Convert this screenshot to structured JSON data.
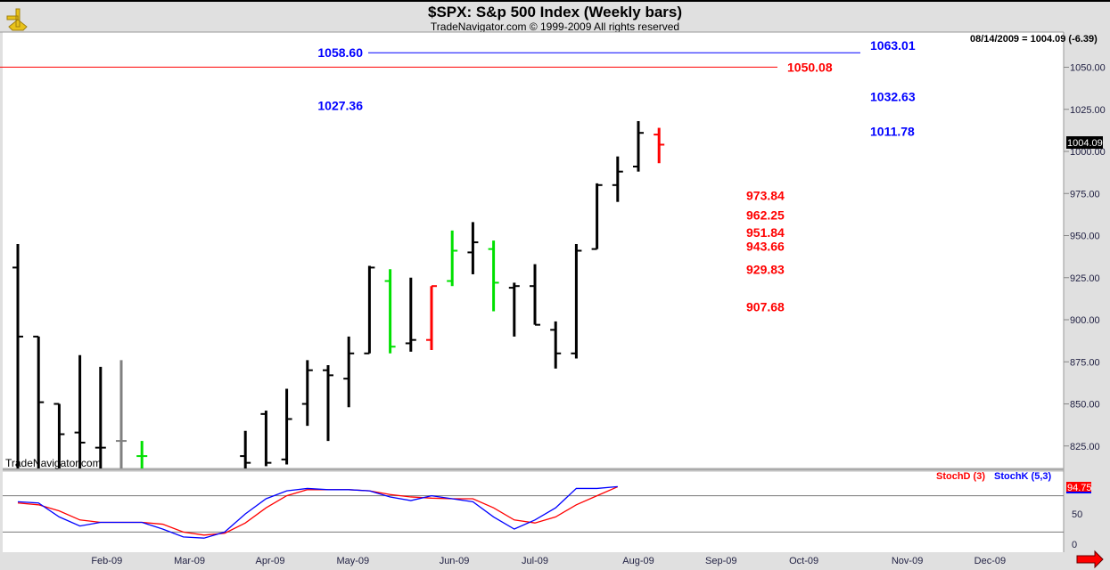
{
  "header": {
    "title": "$SPX:  S&p 500 Index  (Weekly bars)",
    "subtitle": "TradeNavigator.com © 1999-2009 All rights reserved",
    "quote": "08/14/2009 = 1004.09 (-6.39)",
    "watermark": "TradeNavigator.com"
  },
  "colors": {
    "up": "#000000",
    "green": "#00e000",
    "red": "#ff0000",
    "blue": "#0000ff",
    "gray": "#808080"
  },
  "chart_data": [
    {
      "type": "bar",
      "title": "$SPX: S&p 500 Index (Weekly bars)",
      "ylim": [
        808,
        1070
      ],
      "yticks": [
        "825.00",
        "850.00",
        "875.00",
        "900.00",
        "925.00",
        "950.00",
        "975.00",
        "1000.00",
        "1025.00",
        "1050.00"
      ],
      "ytick_values": [
        825,
        850,
        875,
        900,
        925,
        950,
        975,
        1000,
        1025,
        1050
      ],
      "last_price_label": "1004.09",
      "xticks": [
        "Feb-09",
        "Mar-09",
        "Apr-09",
        "May-09",
        "Jun-09",
        "Jul-09",
        "Aug-09",
        "Sep-09",
        "Oct-09",
        "Nov-09",
        "Dec-09"
      ],
      "xtick_weeks": [
        4.3,
        8.3,
        12.2,
        16.2,
        21.1,
        25,
        30,
        34,
        38,
        43,
        47
      ],
      "bars": [
        {
          "w": 0,
          "o": 931,
          "h": 945,
          "l": 800,
          "c": 890,
          "col": "up"
        },
        {
          "w": 1,
          "o": 890,
          "h": 890,
          "l": 800,
          "c": 851,
          "col": "up"
        },
        {
          "w": 2,
          "o": 850,
          "h": 850,
          "l": 800,
          "c": 832,
          "col": "up"
        },
        {
          "w": 3,
          "o": 833,
          "h": 879,
          "l": 800,
          "c": 827,
          "col": "up"
        },
        {
          "w": 4,
          "o": 824,
          "h": 872,
          "l": 800,
          "c": 824,
          "col": "up"
        },
        {
          "w": 5,
          "o": 828,
          "h": 876,
          "l": 800,
          "c": 828,
          "col": "gray"
        },
        {
          "w": 6,
          "o": 819,
          "h": 828,
          "l": 800,
          "c": 819,
          "col": "green"
        },
        {
          "w": 11,
          "o": 819,
          "h": 834,
          "l": 800,
          "c": 815,
          "col": "up"
        },
        {
          "w": 12,
          "o": 844,
          "h": 846,
          "l": 813,
          "c": 815,
          "col": "up"
        },
        {
          "w": 13,
          "o": 817,
          "h": 859,
          "l": 814,
          "c": 841,
          "col": "up"
        },
        {
          "w": 14,
          "o": 850,
          "h": 876,
          "l": 837,
          "c": 870,
          "col": "up"
        },
        {
          "w": 15,
          "o": 870,
          "h": 873,
          "l": 828,
          "c": 867,
          "col": "up"
        },
        {
          "w": 16,
          "o": 865,
          "h": 890,
          "l": 848,
          "c": 880,
          "col": "up"
        },
        {
          "w": 17,
          "o": 880,
          "h": 932,
          "l": 880,
          "c": 931,
          "col": "up"
        },
        {
          "w": 18,
          "o": 923,
          "h": 930,
          "l": 880,
          "c": 884,
          "col": "green"
        },
        {
          "w": 19,
          "o": 886,
          "h": 925,
          "l": 881,
          "c": 888,
          "col": "up"
        },
        {
          "w": 20,
          "o": 888,
          "h": 920,
          "l": 882,
          "c": 920,
          "col": "red"
        },
        {
          "w": 21,
          "o": 923,
          "h": 953,
          "l": 920,
          "c": 941,
          "col": "green"
        },
        {
          "w": 22,
          "o": 940,
          "h": 958,
          "l": 927,
          "c": 946,
          "col": "up"
        },
        {
          "w": 23,
          "o": 942,
          "h": 947,
          "l": 905,
          "c": 922,
          "col": "green"
        },
        {
          "w": 24,
          "o": 919,
          "h": 922,
          "l": 890,
          "c": 920,
          "col": "up"
        },
        {
          "w": 25,
          "o": 920,
          "h": 933,
          "l": 897,
          "c": 897,
          "col": "up"
        },
        {
          "w": 26,
          "o": 894,
          "h": 899,
          "l": 871,
          "c": 880,
          "col": "up"
        },
        {
          "w": 27,
          "o": 880,
          "h": 945,
          "l": 877,
          "c": 941,
          "col": "up"
        },
        {
          "w": 28,
          "o": 942,
          "h": 981,
          "l": 942,
          "c": 980,
          "col": "up"
        },
        {
          "w": 29,
          "o": 980,
          "h": 997,
          "l": 970,
          "c": 988,
          "col": "up"
        },
        {
          "w": 30,
          "o": 991,
          "h": 1018,
          "l": 988,
          "c": 1011,
          "col": "up"
        },
        {
          "w": 31,
          "o": 1010,
          "h": 1014,
          "l": 993,
          "c": 1004,
          "col": "red"
        }
      ],
      "levels": [
        {
          "value": "1063.01",
          "price": 1063.01,
          "color": "blue",
          "line": "black",
          "side": "right"
        },
        {
          "value": "1058.60",
          "price": 1058.6,
          "color": "blue",
          "line": "blue",
          "side": "left"
        },
        {
          "value": "1050.08",
          "price": 1050.08,
          "color": "red",
          "line": "red",
          "side": "full"
        },
        {
          "value": "1032.63",
          "price": 1032.63,
          "color": "blue",
          "line": "black",
          "side": "right"
        },
        {
          "value": "1027.36",
          "price": 1027.36,
          "color": "blue",
          "line": "black",
          "side": "left"
        },
        {
          "value": "1011.78",
          "price": 1011.78,
          "color": "blue",
          "line": "black",
          "side": "right"
        },
        {
          "value": "973.84",
          "price": 973.84,
          "color": "red",
          "line": "black",
          "side": "short"
        },
        {
          "value": "962.25",
          "price": 962.25,
          "color": "red",
          "line": "black",
          "side": "short"
        },
        {
          "value": "951.84",
          "price": 951.84,
          "color": "red",
          "line": "black",
          "side": "short"
        },
        {
          "value": "943.66",
          "price": 943.66,
          "color": "red",
          "line": "black",
          "side": "short"
        },
        {
          "value": "929.83",
          "price": 929.83,
          "color": "red",
          "line": "black",
          "side": "short"
        },
        {
          "value": "907.68",
          "price": 907.68,
          "color": "red",
          "line": "black",
          "side": "short"
        }
      ]
    },
    {
      "type": "line",
      "ylim": [
        0,
        100
      ],
      "yticks": [
        "50",
        "0"
      ],
      "ytick_values": [
        50,
        0
      ],
      "guides": [
        80,
        20
      ],
      "last_label": "94.75",
      "series": [
        {
          "name": "StochD (3)",
          "color": "red",
          "values": [
            68,
            65,
            55,
            40,
            36,
            36,
            36,
            33,
            20,
            15,
            18,
            35,
            60,
            80,
            90,
            90,
            90,
            88,
            82,
            78,
            76,
            75,
            75,
            60,
            40,
            35,
            45,
            65,
            80,
            94.75
          ]
        },
        {
          "name": "StochK (5,3)",
          "color": "blue",
          "values": [
            70,
            68,
            45,
            30,
            36,
            36,
            36,
            25,
            12,
            10,
            20,
            50,
            75,
            88,
            92,
            90,
            90,
            88,
            78,
            72,
            80,
            75,
            70,
            45,
            25,
            40,
            60,
            92,
            92,
            95
          ]
        }
      ]
    }
  ]
}
